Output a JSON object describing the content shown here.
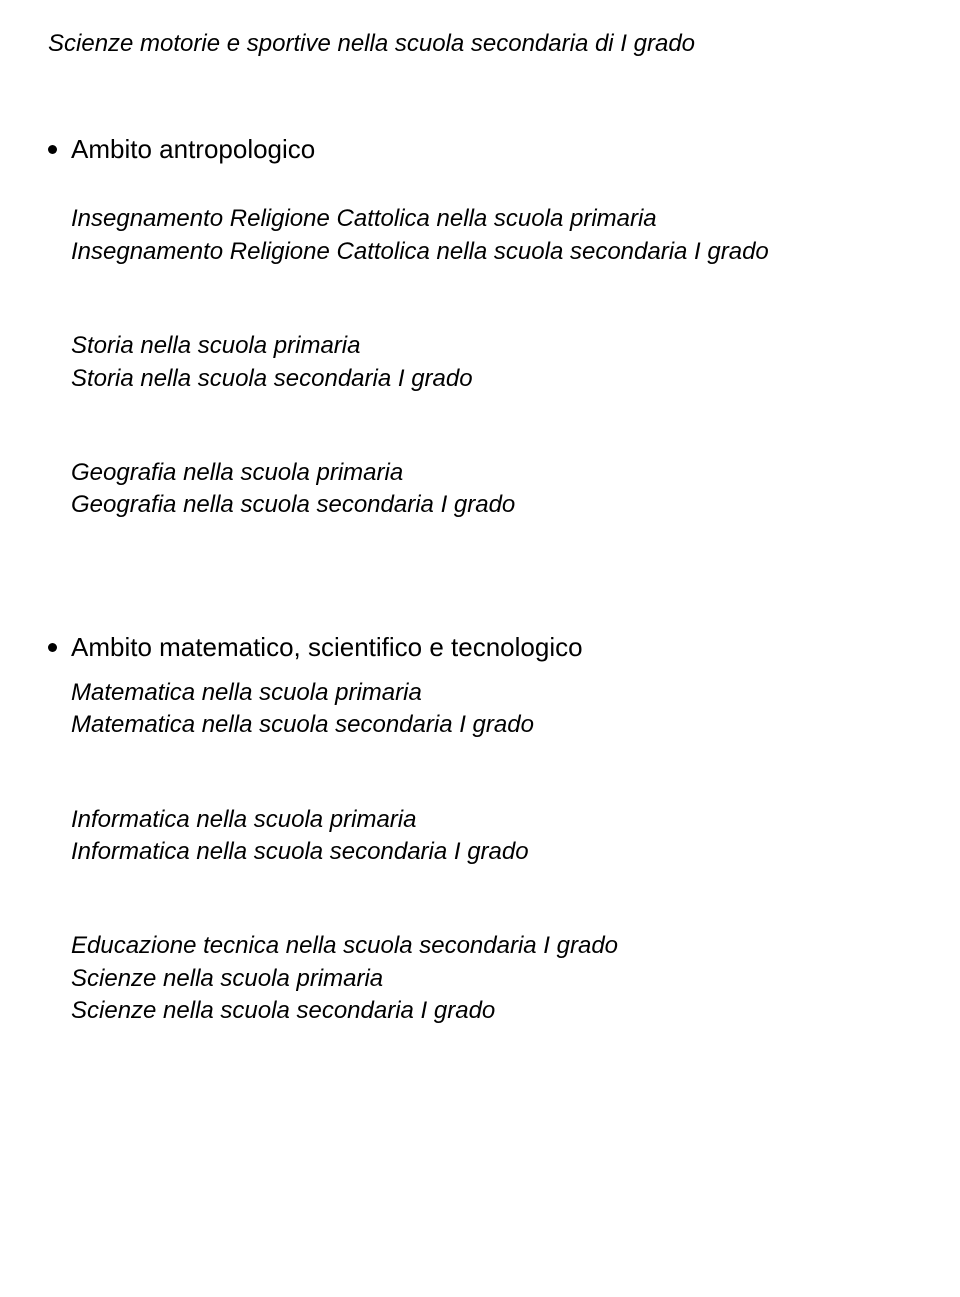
{
  "top_line": "Scienze motorie e sportive nella scuola secondaria di I grado",
  "sections": [
    {
      "title": "Ambito antropologico",
      "groups": [
        {
          "lines": [
            "Insegnamento Religione Cattolica nella scuola primaria",
            "Insegnamento Religione Cattolica nella scuola secondaria I grado"
          ]
        },
        {
          "lines": [
            "Storia nella scuola primaria",
            "Storia nella scuola secondaria I grado"
          ]
        },
        {
          "lines": [
            "Geografia nella  scuola primaria",
            "Geografia nella scuola secondaria I grado"
          ]
        }
      ]
    },
    {
      "title": "Ambito  matematico, scientifico e tecnologico",
      "groups": [
        {
          "lines": [
            "Matematica nella scuola primaria",
            "Matematica nella scuola secondaria I grado"
          ]
        },
        {
          "lines": [
            "Informatica nella scuola primaria",
            "Informatica nella scuola secondaria I grado"
          ]
        },
        {
          "lines": [
            "Educazione tecnica nella scuola secondaria I grado",
            "Scienze nella scuola primaria",
            "Scienze nella scuola  secondaria I grado"
          ]
        }
      ]
    }
  ]
}
